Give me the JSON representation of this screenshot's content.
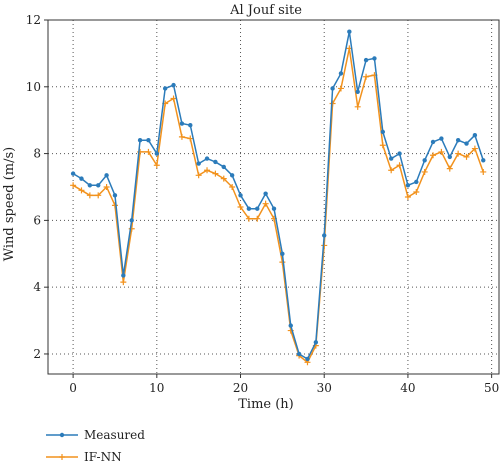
{
  "chart_data": {
    "type": "line",
    "title": "Al Jouf site",
    "xlabel": "Time (h)",
    "ylabel": "Wind speed (m/s)",
    "xlim": [
      -3,
      51
    ],
    "ylim": [
      1.4,
      12
    ],
    "xticks": [
      0,
      10,
      20,
      30,
      40,
      50
    ],
    "yticks": [
      2,
      4,
      6,
      8,
      10,
      12
    ],
    "grid": true,
    "legend_position": "bottom-left",
    "x": [
      0,
      1,
      2,
      3,
      4,
      5,
      6,
      7,
      8,
      9,
      10,
      11,
      12,
      13,
      14,
      15,
      16,
      17,
      18,
      19,
      20,
      21,
      22,
      23,
      24,
      25,
      26,
      27,
      28,
      29,
      30,
      31,
      32,
      33,
      34,
      35,
      36,
      37,
      38,
      39,
      40,
      41,
      42,
      43,
      44,
      45,
      46,
      47,
      48,
      49
    ],
    "series": [
      {
        "name": "Measured",
        "color": "#2b7bba",
        "marker": "circle",
        "values": [
          7.4,
          7.25,
          7.05,
          7.05,
          7.35,
          6.75,
          4.35,
          6.0,
          8.4,
          8.4,
          8.0,
          9.95,
          10.05,
          8.9,
          8.85,
          7.7,
          7.85,
          7.75,
          7.6,
          7.35,
          6.75,
          6.35,
          6.35,
          6.8,
          6.35,
          5.0,
          2.85,
          2.0,
          1.85,
          2.35,
          5.55,
          9.95,
          10.4,
          11.65,
          9.85,
          10.8,
          10.85,
          8.65,
          7.85,
          8.0,
          7.05,
          7.15,
          7.8,
          8.35,
          8.45,
          7.9,
          8.4,
          8.3,
          8.55,
          7.8
        ]
      },
      {
        "name": "IF-NN",
        "color": "#f2921d",
        "marker": "plus",
        "values": [
          7.05,
          6.9,
          6.75,
          6.75,
          7.0,
          6.45,
          4.15,
          5.75,
          8.05,
          8.05,
          7.65,
          9.5,
          9.65,
          8.5,
          8.45,
          7.35,
          7.5,
          7.4,
          7.25,
          7.0,
          6.4,
          6.05,
          6.05,
          6.5,
          6.05,
          4.75,
          2.7,
          1.95,
          1.75,
          2.25,
          5.25,
          9.5,
          9.95,
          11.15,
          9.4,
          10.3,
          10.35,
          8.25,
          7.5,
          7.65,
          6.7,
          6.85,
          7.45,
          7.95,
          8.05,
          7.55,
          8.0,
          7.9,
          8.15,
          7.45
        ]
      }
    ]
  }
}
